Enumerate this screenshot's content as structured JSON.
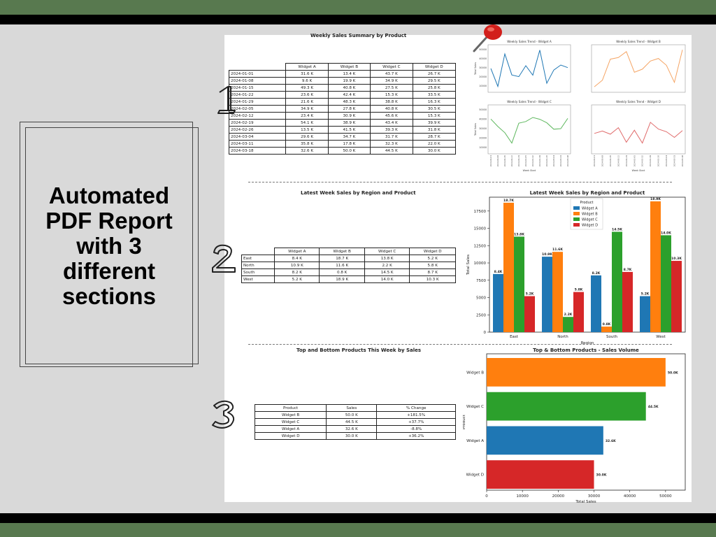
{
  "promo": {
    "title": "Automated PDF Report with 3 different sections"
  },
  "section_numbers": [
    "1",
    "2",
    "3"
  ],
  "section1": {
    "title": "Weekly Sales Summary by Product",
    "columns": [
      "",
      "Widget A",
      "Widget B",
      "Widget C",
      "Widget D"
    ],
    "rows": [
      [
        "2024-01-01",
        "31.6 K",
        "13.4 K",
        "43.7 K",
        "26.7 K"
      ],
      [
        "2024-01-08",
        "9.6 K",
        "19.9 K",
        "34.9 K",
        "29.5 K"
      ],
      [
        "2024-01-15",
        "49.3 K",
        "40.8 K",
        "27.5 K",
        "25.8 K"
      ],
      [
        "2024-01-22",
        "23.6 K",
        "42.4 K",
        "15.3 K",
        "33.5 K"
      ],
      [
        "2024-01-29",
        "21.6 K",
        "48.3 K",
        "38.8 K",
        "16.3 K"
      ],
      [
        "2024-02-05",
        "34.9 K",
        "27.8 K",
        "40.8 K",
        "30.5 K"
      ],
      [
        "2024-02-12",
        "23.4 K",
        "30.9 K",
        "45.6 K",
        "15.3 K"
      ],
      [
        "2024-02-19",
        "54.1 K",
        "38.9 K",
        "43.4 K",
        "39.9 K"
      ],
      [
        "2024-02-26",
        "13.5 K",
        "41.5 K",
        "39.3 K",
        "31.8 K"
      ],
      [
        "2024-03-04",
        "29.6 K",
        "34.7 K",
        "31.7 K",
        "28.7 K"
      ],
      [
        "2024-03-11",
        "35.8 K",
        "17.8 K",
        "32.3 K",
        "22.0 K"
      ],
      [
        "2024-03-18",
        "32.6 K",
        "50.0 K",
        "44.5 K",
        "30.0 K"
      ]
    ]
  },
  "section2": {
    "title": "Latest Week Sales by Region and Product",
    "columns": [
      "",
      "Widget A",
      "Widget B",
      "Widget C",
      "Widget D"
    ],
    "rows": [
      [
        "East",
        "8.4 K",
        "18.7 K",
        "13.8 K",
        "5.2 K"
      ],
      [
        "North",
        "10.9 K",
        "11.6 K",
        "2.2 K",
        "5.8 K"
      ],
      [
        "South",
        "8.2 K",
        "0.8 K",
        "14.5 K",
        "8.7 K"
      ],
      [
        "West",
        "5.2 K",
        "18.9 K",
        "14.0 K",
        "10.3 K"
      ]
    ]
  },
  "section3": {
    "title": "Top and Bottom Products This Week by Sales",
    "columns": [
      "Product",
      "Sales",
      "% Change"
    ],
    "rows": [
      [
        "Widget B",
        "50.0 K",
        "+181.5%"
      ],
      [
        "Widget C",
        "44.5 K",
        "+37.7%"
      ],
      [
        "Widget A",
        "32.6 K",
        "-8.8%"
      ],
      [
        "Widget D",
        "30.0 K",
        "+36.2%"
      ]
    ]
  },
  "colors": {
    "Widget A": "#1f77b4",
    "Widget B": "#ff7f0e",
    "Widget C": "#2ca02c",
    "Widget D": "#d62728"
  },
  "chart_data": [
    {
      "type": "line",
      "title": "Weekly Sales Trend - Widget A",
      "xlabel": "Week Start",
      "ylabel": "Total Sales",
      "x": [
        "2024-01-01",
        "2024-01-08",
        "2024-01-15",
        "2024-01-22",
        "2024-01-29",
        "2024-02-05",
        "2024-02-12",
        "2024-02-19",
        "2024-02-26",
        "2024-03-04",
        "2024-03-11",
        "2024-03-18"
      ],
      "values": [
        31.6,
        9.6,
        49.3,
        23.6,
        21.6,
        34.9,
        23.4,
        54.1,
        13.5,
        29.6,
        35.8,
        32.6
      ],
      "yticks": [
        "50000",
        "40000",
        "30000",
        "20000",
        "10000"
      ],
      "ylim": [
        5,
        58
      ],
      "color": "#1f77b4"
    },
    {
      "type": "line",
      "title": "Weekly Sales Trend - Widget B",
      "xlabel": "",
      "ylabel": "",
      "x": [
        "2024-01-01",
        "2024-01-08",
        "2024-01-15",
        "2024-01-22",
        "2024-01-29",
        "2024-02-05",
        "2024-02-12",
        "2024-02-19",
        "2024-02-26",
        "2024-03-04",
        "2024-03-11",
        "2024-03-18"
      ],
      "values": [
        13.4,
        19.9,
        40.8,
        42.4,
        48.3,
        27.8,
        30.9,
        38.9,
        41.5,
        34.7,
        17.8,
        50.0
      ],
      "yticks": [],
      "ylim": [
        10,
        53
      ],
      "color": "#f5a565"
    },
    {
      "type": "line",
      "title": "Weekly Sales Trend - Widget C",
      "xlabel": "Week Start",
      "ylabel": "Total Sales",
      "x": [
        "2024-01-01",
        "2024-01-08",
        "2024-01-15",
        "2024-01-22",
        "2024-01-29",
        "2024-02-05",
        "2024-02-12",
        "2024-02-19",
        "2024-02-26",
        "2024-03-04",
        "2024-03-11",
        "2024-03-18"
      ],
      "values": [
        43.7,
        34.9,
        27.5,
        15.3,
        38.8,
        40.8,
        45.6,
        43.4,
        39.3,
        31.7,
        32.3,
        44.5
      ],
      "yticks": [
        "50000",
        "40000",
        "30000",
        "20000",
        "10000"
      ],
      "ylim": [
        5,
        58
      ],
      "color": "#5fb85f"
    },
    {
      "type": "line",
      "title": "Weekly Sales Trend - Widget D",
      "xlabel": "Week Start",
      "ylabel": "",
      "x": [
        "2024-01-01",
        "2024-01-08",
        "2024-01-15",
        "2024-01-22",
        "2024-01-29",
        "2024-02-05",
        "2024-02-12",
        "2024-02-19",
        "2024-02-26",
        "2024-03-04",
        "2024-03-11",
        "2024-03-18"
      ],
      "values": [
        26.7,
        29.5,
        25.8,
        33.5,
        16.3,
        30.5,
        15.3,
        39.9,
        31.8,
        28.7,
        22.0,
        30.0
      ],
      "yticks": [],
      "ylim": [
        5,
        58
      ],
      "color": "#e06b6b"
    },
    {
      "type": "bar",
      "title": "Latest Week Sales by Region and Product",
      "xlabel": "Region",
      "ylabel": "Total Sales",
      "categories": [
        "East",
        "North",
        "South",
        "West"
      ],
      "ylim": [
        0,
        19500
      ],
      "yticks": [
        0,
        2500,
        5000,
        7500,
        10000,
        12500,
        15000,
        17500
      ],
      "legend": {
        "title": "Product",
        "position": "top-center"
      },
      "series": [
        {
          "name": "Widget A",
          "values": [
            8400,
            10900,
            8200,
            5200
          ],
          "labels": [
            "8.4K",
            "10.9K",
            "8.2K",
            "5.2K"
          ]
        },
        {
          "name": "Widget B",
          "values": [
            18700,
            11600,
            800,
            18900
          ],
          "labels": [
            "18.7K",
            "11.6K",
            "0.8K",
            "18.9K"
          ]
        },
        {
          "name": "Widget C",
          "values": [
            13800,
            2200,
            14500,
            14000
          ],
          "labels": [
            "13.8K",
            "2.2K",
            "14.5K",
            "14.0K"
          ]
        },
        {
          "name": "Widget D",
          "values": [
            5200,
            5800,
            8700,
            10300
          ],
          "labels": [
            "5.2K",
            "5.8K",
            "8.7K",
            "10.3K"
          ]
        }
      ]
    },
    {
      "type": "bar",
      "orientation": "horizontal",
      "title": "Top & Bottom Products - Sales Volume",
      "xlabel": "Total Sales",
      "ylabel": "Product",
      "categories": [
        "Widget B",
        "Widget C",
        "Widget A",
        "Widget D"
      ],
      "values": [
        50000,
        44500,
        32600,
        30000
      ],
      "labels": [
        "50.0K",
        "44.5K",
        "32.6K",
        "30.0K"
      ],
      "xlim": [
        0,
        55500
      ],
      "xticks": [
        0,
        10000,
        20000,
        30000,
        40000,
        50000
      ]
    }
  ]
}
